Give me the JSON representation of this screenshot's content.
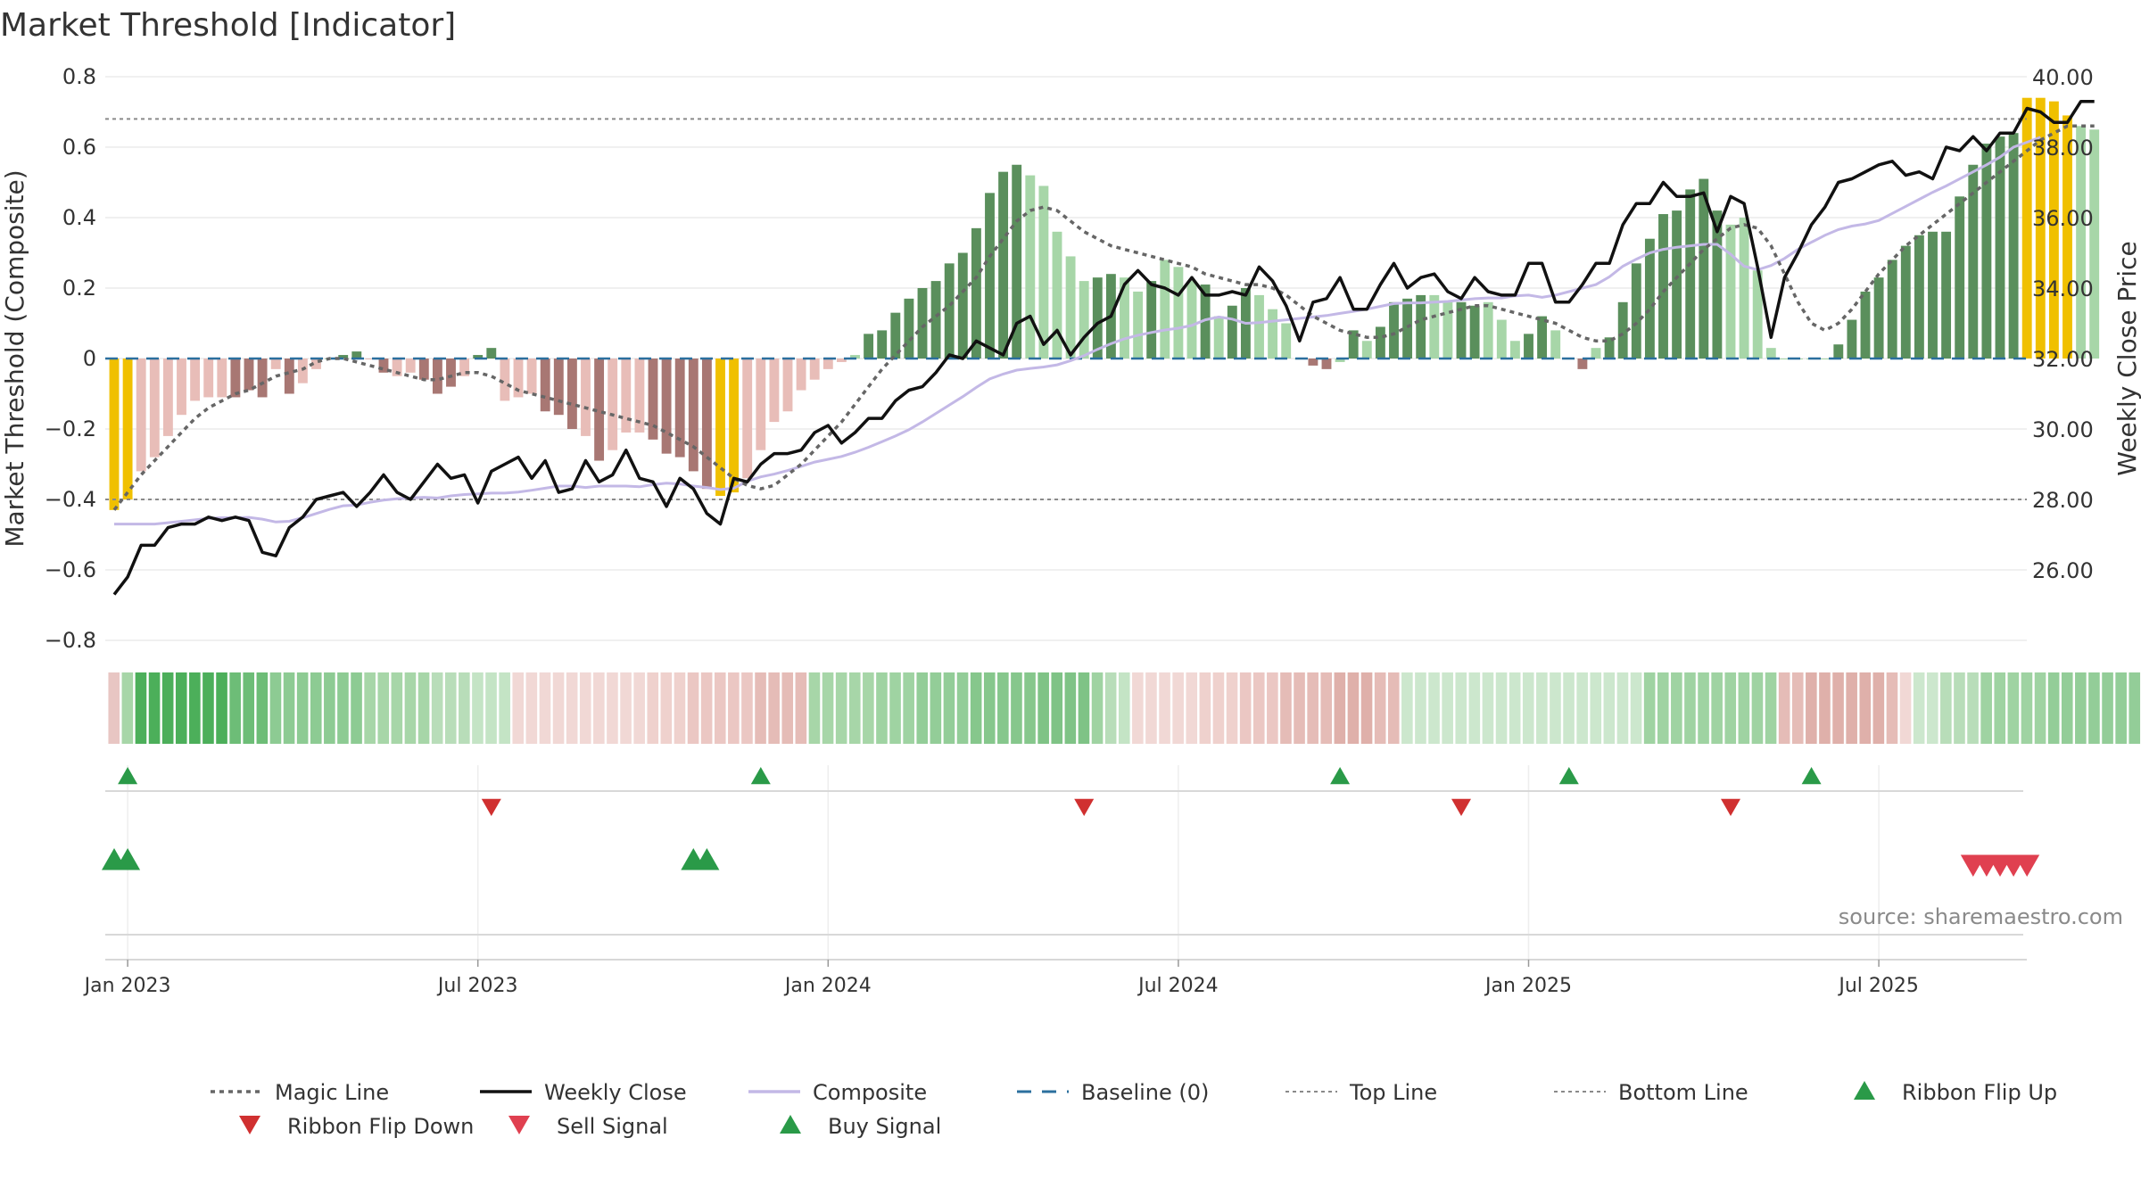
{
  "header": {
    "title": "Market Threshold [Indicator]",
    "source": "source: sharemaestro.com"
  },
  "chart_data": {
    "type": "bar",
    "title": "Market Threshold [Indicator]",
    "ylabel_left": "Market Threshold (Composite)",
    "ylabel_right": "Weekly Close Price",
    "ylim_left": [
      -0.8,
      0.8
    ],
    "ylim_right": [
      24.0,
      40.0
    ],
    "left_ticks": [
      "0.8",
      "0.6",
      "0.4",
      "0.2",
      "0",
      "−0.2",
      "−0.4",
      "−0.6",
      "−0.8"
    ],
    "left_tick_values": [
      0.8,
      0.6,
      0.4,
      0.2,
      0,
      -0.2,
      -0.4,
      -0.6,
      -0.8
    ],
    "right_ticks": [
      "40.00",
      "38.00",
      "36.00",
      "34.00",
      "32.00",
      "30.00",
      "28.00",
      "26.00"
    ],
    "right_tick_values": [
      40,
      38,
      36,
      34,
      32,
      30,
      28,
      26
    ],
    "x_ticks": [
      "Jan 2023",
      "Jul 2023",
      "Jan 2024",
      "Jul 2024",
      "Jan 2025",
      "Jul 2025"
    ],
    "x_tick_weeks": [
      1,
      27,
      53,
      79,
      105,
      131
    ],
    "top_line": 0.68,
    "bottom_line": -0.4,
    "composite": [
      -0.43,
      -0.4,
      -0.32,
      -0.28,
      -0.22,
      -0.16,
      -0.12,
      -0.11,
      -0.11,
      -0.11,
      -0.09,
      -0.11,
      -0.03,
      -0.1,
      -0.07,
      -0.03,
      0.0,
      0.01,
      0.02,
      0.0,
      -0.04,
      -0.05,
      -0.04,
      -0.06,
      -0.1,
      -0.08,
      -0.05,
      0.01,
      0.03,
      -0.12,
      -0.11,
      -0.1,
      -0.15,
      -0.16,
      -0.2,
      -0.22,
      -0.29,
      -0.26,
      -0.21,
      -0.21,
      -0.23,
      -0.27,
      -0.28,
      -0.32,
      -0.37,
      -0.39,
      -0.38,
      -0.34,
      -0.26,
      -0.18,
      -0.15,
      -0.09,
      -0.06,
      -0.03,
      -0.01,
      0.01,
      0.07,
      0.08,
      0.13,
      0.17,
      0.2,
      0.22,
      0.27,
      0.3,
      0.37,
      0.47,
      0.53,
      0.55,
      0.52,
      0.49,
      0.36,
      0.29,
      0.22,
      0.23,
      0.24,
      0.23,
      0.19,
      0.22,
      0.28,
      0.26,
      0.22,
      0.21,
      0.12,
      0.15,
      0.2,
      0.18,
      0.14,
      0.1,
      0.0,
      -0.02,
      -0.03,
      -0.01,
      0.08,
      0.05,
      0.09,
      0.16,
      0.17,
      0.18,
      0.18,
      0.16,
      0.16,
      0.15,
      0.16,
      0.11,
      0.05,
      0.07,
      0.12,
      0.08,
      0.0,
      -0.03,
      0.03,
      0.06,
      0.16,
      0.27,
      0.34,
      0.41,
      0.42,
      0.48,
      0.51,
      0.42,
      0.38,
      0.4,
      0.25,
      0.03,
      0.0,
      0.0,
      0.0,
      0.0,
      0.04,
      0.11,
      0.19,
      0.23,
      0.28,
      0.32,
      0.35,
      0.36,
      0.36,
      0.46,
      0.55,
      0.61,
      0.63,
      0.64,
      0.74,
      0.74,
      0.73,
      0.69,
      0.66,
      0.65
    ],
    "composite_marker_colors": [
      "#f0c000",
      "#f0c000",
      "#e8bdb8",
      "#e8bdb8",
      "#e8bdb8",
      "#e8bdb8",
      "#e8bdb8",
      "#e8bdb8",
      "#e8bdb8",
      "#a87773",
      "#a87773",
      "#a87773",
      "#e8bdb8",
      "#a87773",
      "#e8bdb8",
      "#e8bdb8",
      "#a7d6a8",
      "#5a8f5c",
      "#5a8f5c",
      "#e8bdb8",
      "#a87773",
      "#e8bdb8",
      "#e8bdb8",
      "#a87773",
      "#a87773",
      "#a87773",
      "#e8bdb8",
      "#5a8f5c",
      "#5a8f5c",
      "#e8bdb8",
      "#e8bdb8",
      "#e8bdb8",
      "#a87773",
      "#a87773",
      "#a87773",
      "#e8bdb8",
      "#a87773",
      "#e8bdb8",
      "#e8bdb8",
      "#e8bdb8",
      "#a87773",
      "#a87773",
      "#a87773",
      "#a87773",
      "#a87773",
      "#f0c000",
      "#f0c000",
      "#e8bdb8",
      "#e8bdb8",
      "#e8bdb8",
      "#e8bdb8",
      "#e8bdb8",
      "#e8bdb8",
      "#e8bdb8",
      "#e8bdb8",
      "#a7d6a8",
      "#5a8f5c",
      "#5a8f5c",
      "#5a8f5c",
      "#5a8f5c",
      "#5a8f5c",
      "#5a8f5c",
      "#5a8f5c",
      "#5a8f5c",
      "#5a8f5c",
      "#5a8f5c",
      "#5a8f5c",
      "#5a8f5c",
      "#a7d6a8",
      "#a7d6a8",
      "#a7d6a8",
      "#a7d6a8",
      "#a7d6a8",
      "#5a8f5c",
      "#5a8f5c",
      "#a7d6a8",
      "#a7d6a8",
      "#5a8f5c",
      "#a7d6a8",
      "#a7d6a8",
      "#a7d6a8",
      "#5a8f5c",
      "#a7d6a8",
      "#5a8f5c",
      "#5a8f5c",
      "#a7d6a8",
      "#a7d6a8",
      "#a7d6a8",
      "#a7d6a8",
      "#a87773",
      "#a87773",
      "#a7d6a8",
      "#5a8f5c",
      "#a7d6a8",
      "#5a8f5c",
      "#5a8f5c",
      "#5a8f5c",
      "#5a8f5c",
      "#a7d6a8",
      "#a7d6a8",
      "#5a8f5c",
      "#5a8f5c",
      "#a7d6a8",
      "#a7d6a8",
      "#a7d6a8",
      "#5a8f5c",
      "#5a8f5c",
      "#a7d6a8",
      "#a7d6a8",
      "#a87773",
      "#a7d6a8",
      "#5a8f5c",
      "#5a8f5c",
      "#5a8f5c",
      "#5a8f5c",
      "#5a8f5c",
      "#5a8f5c",
      "#5a8f5c",
      "#5a8f5c",
      "#5a8f5c",
      "#a7d6a8",
      "#a7d6a8",
      "#a7d6a8",
      "#a7d6a8",
      "#a7d6a8",
      "#a7d6a8",
      "#a7d6a8",
      "#a7d6a8",
      "#5a8f5c",
      "#5a8f5c",
      "#5a8f5c",
      "#5a8f5c",
      "#5a8f5c",
      "#5a8f5c",
      "#5a8f5c",
      "#5a8f5c",
      "#5a8f5c",
      "#5a8f5c",
      "#5a8f5c",
      "#5a8f5c",
      "#5a8f5c",
      "#5a8f5c",
      "#f0c000",
      "#f0c000",
      "#f0c000",
      "#f0c000",
      "#a7d6a8",
      "#a7d6a8"
    ],
    "magic_line": [
      -0.43,
      -0.38,
      -0.33,
      -0.29,
      -0.25,
      -0.21,
      -0.17,
      -0.14,
      -0.12,
      -0.1,
      -0.09,
      -0.07,
      -0.05,
      -0.04,
      -0.03,
      -0.01,
      0.0,
      0.0,
      -0.01,
      -0.02,
      -0.03,
      -0.04,
      -0.05,
      -0.06,
      -0.06,
      -0.05,
      -0.04,
      -0.04,
      -0.05,
      -0.07,
      -0.09,
      -0.1,
      -0.11,
      -0.12,
      -0.13,
      -0.14,
      -0.15,
      -0.16,
      -0.17,
      -0.18,
      -0.19,
      -0.21,
      -0.23,
      -0.25,
      -0.28,
      -0.31,
      -0.34,
      -0.36,
      -0.37,
      -0.36,
      -0.33,
      -0.3,
      -0.26,
      -0.22,
      -0.18,
      -0.13,
      -0.08,
      -0.03,
      0.01,
      0.05,
      0.09,
      0.12,
      0.15,
      0.19,
      0.23,
      0.29,
      0.34,
      0.39,
      0.42,
      0.43,
      0.42,
      0.39,
      0.36,
      0.34,
      0.32,
      0.31,
      0.3,
      0.29,
      0.28,
      0.27,
      0.26,
      0.24,
      0.23,
      0.22,
      0.21,
      0.21,
      0.2,
      0.18,
      0.15,
      0.12,
      0.1,
      0.08,
      0.07,
      0.06,
      0.06,
      0.07,
      0.09,
      0.11,
      0.12,
      0.13,
      0.14,
      0.15,
      0.15,
      0.14,
      0.13,
      0.12,
      0.11,
      0.1,
      0.08,
      0.06,
      0.05,
      0.05,
      0.07,
      0.1,
      0.14,
      0.19,
      0.23,
      0.27,
      0.31,
      0.34,
      0.37,
      0.38,
      0.37,
      0.32,
      0.24,
      0.16,
      0.1,
      0.08,
      0.1,
      0.14,
      0.19,
      0.24,
      0.28,
      0.32,
      0.35,
      0.38,
      0.41,
      0.44,
      0.47,
      0.5,
      0.53,
      0.56,
      0.59,
      0.62,
      0.64,
      0.66,
      0.66,
      0.66
    ],
    "composite_line": [
      -0.47,
      -0.47,
      -0.47,
      -0.47,
      -0.466,
      -0.462,
      -0.458,
      -0.454,
      -0.452,
      -0.452,
      -0.451,
      -0.456,
      -0.464,
      -0.462,
      -0.452,
      -0.44,
      -0.428,
      -0.418,
      -0.416,
      -0.408,
      -0.402,
      -0.398,
      -0.396,
      -0.394,
      -0.396,
      -0.39,
      -0.386,
      -0.384,
      -0.382,
      -0.382,
      -0.379,
      -0.374,
      -0.368,
      -0.362,
      -0.362,
      -0.366,
      -0.362,
      -0.362,
      -0.362,
      -0.364,
      -0.358,
      -0.354,
      -0.356,
      -0.362,
      -0.366,
      -0.372,
      -0.368,
      -0.348,
      -0.336,
      -0.328,
      -0.318,
      -0.306,
      -0.294,
      -0.286,
      -0.278,
      -0.266,
      -0.252,
      -0.236,
      -0.22,
      -0.202,
      -0.18,
      -0.156,
      -0.132,
      -0.108,
      -0.082,
      -0.058,
      -0.044,
      -0.033,
      -0.028,
      -0.024,
      -0.018,
      -0.006,
      0.008,
      0.026,
      0.042,
      0.056,
      0.066,
      0.074,
      0.081,
      0.086,
      0.094,
      0.11,
      0.118,
      0.112,
      0.1,
      0.102,
      0.106,
      0.11,
      0.114,
      0.118,
      0.122,
      0.128,
      0.134,
      0.14,
      0.148,
      0.156,
      0.158,
      0.158,
      0.16,
      0.162,
      0.166,
      0.17,
      0.172,
      0.172,
      0.178,
      0.18,
      0.174,
      0.18,
      0.19,
      0.2,
      0.21,
      0.232,
      0.262,
      0.282,
      0.3,
      0.31,
      0.316,
      0.32,
      0.324,
      0.324,
      0.296,
      0.262,
      0.252,
      0.264,
      0.284,
      0.31,
      0.33,
      0.35,
      0.366,
      0.376,
      0.382,
      0.392,
      0.412,
      0.432,
      0.452,
      0.472,
      0.49,
      0.51,
      0.53,
      0.55,
      0.572,
      0.6,
      0.614,
      0.628
    ],
    "weekly_close": [
      25.3,
      25.8,
      26.7,
      26.7,
      27.2,
      27.3,
      27.3,
      27.5,
      27.4,
      27.5,
      27.4,
      26.5,
      26.4,
      27.2,
      27.5,
      28.0,
      28.1,
      28.2,
      27.8,
      28.2,
      28.7,
      28.2,
      28.0,
      28.5,
      29.0,
      28.6,
      28.7,
      27.9,
      28.8,
      29.0,
      29.2,
      28.6,
      29.1,
      28.2,
      28.3,
      29.1,
      28.5,
      28.7,
      29.4,
      28.6,
      28.5,
      27.8,
      28.6,
      28.3,
      27.6,
      27.3,
      28.6,
      28.5,
      29.0,
      29.3,
      29.3,
      29.4,
      29.9,
      30.1,
      29.6,
      29.9,
      30.3,
      30.3,
      30.8,
      31.1,
      31.2,
      31.6,
      32.1,
      32.0,
      32.5,
      32.3,
      32.1,
      33.0,
      33.2,
      32.4,
      32.8,
      32.1,
      32.6,
      33.0,
      33.2,
      34.1,
      34.5,
      34.1,
      34.0,
      33.8,
      34.3,
      33.8,
      33.8,
      33.9,
      33.8,
      34.6,
      34.2,
      33.5,
      32.5,
      33.6,
      33.7,
      34.3,
      33.4,
      33.4,
      34.1,
      34.7,
      34.0,
      34.3,
      34.4,
      33.9,
      33.7,
      34.3,
      33.9,
      33.8,
      33.8,
      34.7,
      34.7,
      33.6,
      33.6,
      34.1,
      34.7,
      34.7,
      35.8,
      36.4,
      36.4,
      37.0,
      36.6,
      36.6,
      36.7,
      35.6,
      36.6,
      36.4,
      34.6,
      32.6,
      34.3,
      35.0,
      35.8,
      36.3,
      37.0,
      37.1,
      37.3,
      37.5,
      37.6,
      37.2,
      37.3,
      37.1,
      38.0,
      37.9,
      38.3,
      37.9,
      38.4,
      38.4,
      39.1,
      39.0,
      38.7,
      38.7,
      39.3,
      39.3
    ],
    "ribbon_colors": [
      "#e8c6c3",
      "#a7d6a8",
      "#4caf5a",
      "#4caf5a",
      "#4caf5a",
      "#4caf5a",
      "#4caf5a",
      "#4caf5a",
      "#4caf5a",
      "#6dbd77",
      "#6dbd77",
      "#6dbd77",
      "#8dcb93",
      "#8dcb93",
      "#8dcb93",
      "#8dcb93",
      "#8dcb93",
      "#8dcb93",
      "#8dcb93",
      "#a7d6a8",
      "#a7d6a8",
      "#a7d6a8",
      "#a7d6a8",
      "#a7d6a8",
      "#b8ddb9",
      "#b8ddb9",
      "#b8ddb9",
      "#c4e4c5",
      "#c4e4c5",
      "#c4e4c5",
      "#f1d8d5",
      "#f1d8d5",
      "#f1d8d5",
      "#f1d8d5",
      "#f1d8d5",
      "#f1d8d5",
      "#f1d8d5",
      "#f1d8d5",
      "#f1d8d5",
      "#f1d8d5",
      "#efd1cd",
      "#efd1cd",
      "#efd1cd",
      "#ebc7c3",
      "#ebc7c3",
      "#ebc7c3",
      "#ebc7c3",
      "#ebc7c3",
      "#e5bcb7",
      "#e5bcb7",
      "#e5bcb7",
      "#e5bcb7",
      "#a7d6a8",
      "#a7d6a8",
      "#a7d6a8",
      "#a7d6a8",
      "#a7d6a8",
      "#9fd3a2",
      "#9fd3a2",
      "#9fd3a2",
      "#93cd98",
      "#93cd98",
      "#93cd98",
      "#93cd98",
      "#86c78c",
      "#86c78c",
      "#86c78c",
      "#86c78c",
      "#86c78c",
      "#7fc386",
      "#7fc386",
      "#7fc386",
      "#7fc386",
      "#9fd3a2",
      "#b8ddb9",
      "#c4e4c5",
      "#f1d8d5",
      "#f1d8d5",
      "#f1d8d5",
      "#f1d8d5",
      "#f1d8d5",
      "#efd1cd",
      "#efd1cd",
      "#efd1cd",
      "#ebc7c3",
      "#ebc7c3",
      "#ebc7c3",
      "#e5bcb7",
      "#e5bcb7",
      "#e5bcb7",
      "#e5bcb7",
      "#dfb0aa",
      "#dfb0aa",
      "#dfb0aa",
      "#e5bcb7",
      "#e5bcb7",
      "#cce7cd",
      "#cce7cd",
      "#cce7cd",
      "#cce7cd",
      "#cce7cd",
      "#cce7cd",
      "#cce7cd",
      "#cce7cd",
      "#cce7cd",
      "#cce7cd",
      "#cce7cd",
      "#cce7cd",
      "#cce7cd",
      "#cce7cd",
      "#cce7cd",
      "#cce7cd",
      "#cce7cd",
      "#cce7cd",
      "#9fd3a2",
      "#9fd3a2",
      "#9fd3a2",
      "#9fd3a2",
      "#9fd3a2",
      "#9fd3a2",
      "#9fd3a2",
      "#9fd3a2",
      "#9fd3a2",
      "#9fd3a2",
      "#e5bcb7",
      "#e5bcb7",
      "#dfb0aa",
      "#dfb0aa",
      "#dfb0aa",
      "#dfb0aa",
      "#dfb0aa",
      "#dfb0aa",
      "#e5bcb7",
      "#f1d8d5",
      "#cce7cd",
      "#cce7cd",
      "#b8ddb9",
      "#b8ddb9",
      "#b8ddb9",
      "#9fd3a2",
      "#9fd3a2",
      "#9fd3a2",
      "#9fd3a2",
      "#9fd3a2",
      "#93cd98",
      "#93cd98",
      "#93cd98",
      "#93cd98",
      "#93cd98",
      "#93cd98",
      "#93cd98",
      "#93cd98",
      "#a7d6a8",
      "#a7d6a8"
    ],
    "ribbon_flip_up": [
      1,
      48,
      91,
      108,
      126
    ],
    "ribbon_flip_down": [
      28,
      72,
      100,
      120
    ],
    "buy_signals": [
      0,
      1,
      43,
      44
    ],
    "sell_signals": [
      138,
      139,
      140,
      141,
      142
    ],
    "legend": [
      {
        "label": "Magic Line",
        "kind": "dotted",
        "color": "#666666"
      },
      {
        "label": "Weekly Close",
        "kind": "solid",
        "color": "#111111"
      },
      {
        "label": "Composite",
        "kind": "solid",
        "color": "#c3b8e6"
      },
      {
        "label": "Baseline (0)",
        "kind": "dashed",
        "color": "#2b6f9e"
      },
      {
        "label": "Top Line",
        "kind": "dotted-thin",
        "color": "#8a8a8a"
      },
      {
        "label": "Bottom Line",
        "kind": "dotted-thin",
        "color": "#8a8a8a"
      },
      {
        "label": "Ribbon Flip Up",
        "kind": "tri-up",
        "color": "#2a9a48"
      },
      {
        "label": "Ribbon Flip Down",
        "kind": "tri-down",
        "color": "#d03030"
      },
      {
        "label": "Sell Signal",
        "kind": "tri-down",
        "color": "#e04050"
      },
      {
        "label": "Buy Signal",
        "kind": "tri-up",
        "color": "#2a9a48"
      }
    ]
  }
}
